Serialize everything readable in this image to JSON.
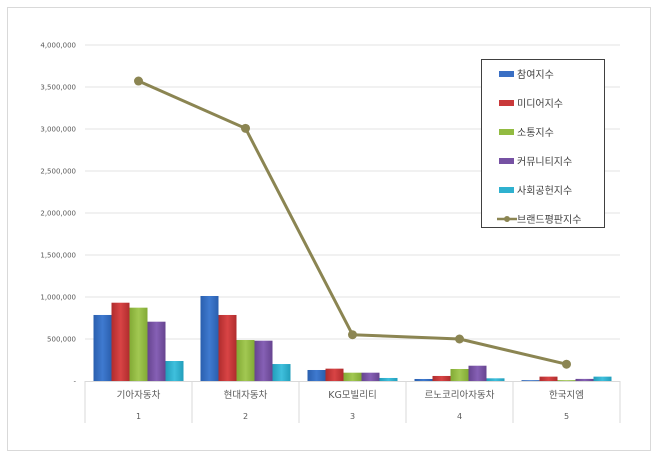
{
  "chart_data": {
    "type": "bar",
    "title": "",
    "xlabel": "",
    "ylabel": "",
    "ylim": [
      0,
      4000000
    ],
    "y_ticks": [
      0,
      500000,
      1000000,
      1500000,
      2000000,
      2500000,
      3000000,
      3500000,
      4000000
    ],
    "y_tick_labels": [
      "-",
      "500,000",
      "1,000,000",
      "1,500,000",
      "2,000,000",
      "2,500,000",
      "3,000,000",
      "3,500,000",
      "4,000,000"
    ],
    "grid": true,
    "legend_position": "top-right-inside",
    "categories": [
      "기아자동차",
      "현대자동차",
      "KG모빌리티",
      "르노코리아자동차",
      "한국지엠"
    ],
    "category_ranks": [
      "1",
      "2",
      "3",
      "4",
      "5"
    ],
    "series": [
      {
        "name": "참여지수",
        "type": "bar",
        "color": "#3a6fc4",
        "values": [
          786000,
          1012000,
          131000,
          24000,
          10000
        ]
      },
      {
        "name": "미디어지수",
        "type": "bar",
        "color": "#c9393a",
        "values": [
          932000,
          786000,
          147000,
          60000,
          52000
        ]
      },
      {
        "name": "소통지수",
        "type": "bar",
        "color": "#92bb41",
        "values": [
          873000,
          488000,
          99000,
          143000,
          10000
        ]
      },
      {
        "name": "커뮤니티지수",
        "type": "bar",
        "color": "#7651a3",
        "values": [
          706000,
          480000,
          99000,
          182000,
          25000
        ]
      },
      {
        "name": "사회공헌지수",
        "type": "bar",
        "color": "#2fb1cf",
        "values": [
          238000,
          202000,
          36000,
          32000,
          52000
        ]
      },
      {
        "name": "브랜드평판지수",
        "type": "line",
        "color": "#8b8552",
        "values": [
          3571000,
          3008000,
          551000,
          500000,
          200000
        ]
      }
    ]
  }
}
